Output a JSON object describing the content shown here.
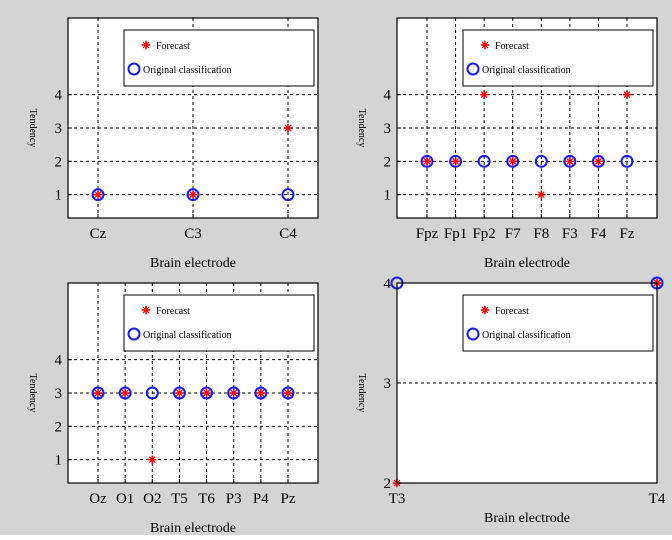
{
  "chart_data": [
    {
      "type": "scatter",
      "categories": [
        "Cz",
        "C3",
        "C4"
      ],
      "yticks": [
        1,
        2,
        3,
        4
      ],
      "ylim": [
        0.3,
        6.3
      ],
      "ylabel": "Tendency",
      "xlabel": "Brain electrode",
      "grid": true,
      "legend_placement": "top-right",
      "series": [
        {
          "name": "Forecast",
          "marker": "red-star",
          "values": [
            1,
            1,
            3
          ]
        },
        {
          "name": "Original classification",
          "marker": "blue-circle",
          "values": [
            1,
            1,
            1
          ]
        }
      ]
    },
    {
      "type": "scatter",
      "categories": [
        "Fpz",
        "Fp1",
        "Fp2",
        "F7",
        "F8",
        "F3",
        "F4",
        "Fz"
      ],
      "yticks": [
        1,
        2,
        3,
        4
      ],
      "ylim": [
        0.3,
        6.3
      ],
      "ylabel": "Tendency",
      "xlabel": "Brain electrode",
      "grid": true,
      "legend_placement": "top-right",
      "series": [
        {
          "name": "Forecast",
          "marker": "red-star",
          "values": [
            2,
            2,
            4,
            2,
            1,
            2,
            2,
            4
          ]
        },
        {
          "name": "Original classification",
          "marker": "blue-circle",
          "values": [
            2,
            2,
            2,
            2,
            2,
            2,
            2,
            2
          ]
        }
      ]
    },
    {
      "type": "scatter",
      "categories": [
        "Oz",
        "O1",
        "O2",
        "T5",
        "T6",
        "P3",
        "P4",
        "Pz"
      ],
      "yticks": [
        1,
        2,
        3,
        4
      ],
      "ylim": [
        0.3,
        6.3
      ],
      "ylabel": "Tendency",
      "xlabel": "Brain electrode",
      "grid": true,
      "legend_placement": "top-right",
      "series": [
        {
          "name": "Forecast",
          "marker": "red-star",
          "values": [
            3,
            3,
            1,
            3,
            3,
            3,
            3,
            3
          ]
        },
        {
          "name": "Original classification",
          "marker": "blue-circle",
          "values": [
            3,
            3,
            3,
            3,
            3,
            3,
            3,
            3
          ]
        }
      ]
    },
    {
      "type": "scatter",
      "categories": [
        "T3",
        "T4"
      ],
      "yticks": [
        2,
        3,
        4
      ],
      "ylim": [
        2,
        4
      ],
      "ylabel": "Tendency",
      "xlabel": "Brain electrode",
      "grid": true,
      "legend_placement": "top-right",
      "series": [
        {
          "name": "Forecast",
          "marker": "red-star",
          "values": [
            2,
            4
          ]
        },
        {
          "name": "Original classification",
          "marker": "blue-circle",
          "values": [
            4,
            4
          ]
        }
      ]
    }
  ],
  "legend": {
    "forecast_label": "Forecast",
    "original_label": "Original classification"
  },
  "colors": {
    "figure_background": "#d4d4d4",
    "axes_background": "#ffffff",
    "forecast": "#ff0000",
    "original": "#1a1aff"
  }
}
